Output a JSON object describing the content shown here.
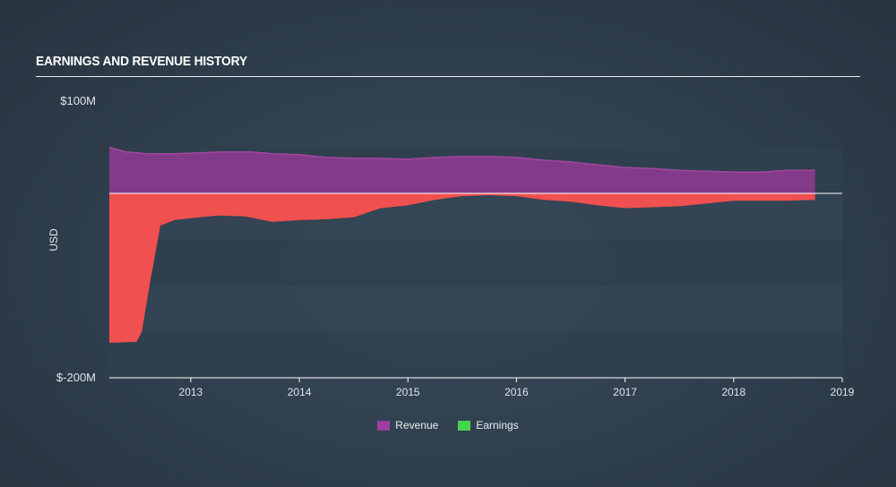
{
  "header": {
    "title": "EARNINGS AND REVENUE HISTORY"
  },
  "colors": {
    "revenue": "#8b3a8e",
    "earnings_negative": "#f0504f",
    "earnings_legend": "#44d64a",
    "revenue_legend": "#9b3fa0"
  },
  "chart_data": {
    "type": "area",
    "title": "EARNINGS AND REVENUE HISTORY",
    "ylabel": "USD",
    "xlabel": "",
    "ylim": [
      -200,
      100
    ],
    "y_tick_labels": [
      "$100M",
      "$-200M"
    ],
    "x_ticks": [
      "2013",
      "2014",
      "2015",
      "2016",
      "2017",
      "2018",
      "2019"
    ],
    "x_range": [
      2012.25,
      2019.0
    ],
    "series": [
      {
        "name": "Revenue",
        "x": [
          2012.25,
          2012.4,
          2012.6,
          2012.85,
          2013.1,
          2013.3,
          2013.55,
          2013.75,
          2014.0,
          2014.25,
          2014.5,
          2014.75,
          2015.0,
          2015.25,
          2015.5,
          2015.75,
          2016.0,
          2016.25,
          2016.5,
          2016.75,
          2017.0,
          2017.25,
          2017.5,
          2017.75,
          2018.0,
          2018.25,
          2018.5,
          2018.75
        ],
        "values": [
          50,
          45,
          43,
          43,
          44,
          45,
          45,
          43,
          42,
          39,
          38,
          38,
          37,
          39,
          40,
          40,
          39,
          36,
          34,
          31,
          28,
          27,
          25,
          24,
          23,
          23,
          25,
          25
        ]
      },
      {
        "name": "Earnings",
        "x": [
          2012.25,
          2012.5,
          2012.55,
          2012.62,
          2012.72,
          2012.85,
          2013.0,
          2013.25,
          2013.5,
          2013.75,
          2014.0,
          2014.25,
          2014.5,
          2014.75,
          2015.0,
          2015.25,
          2015.5,
          2015.75,
          2016.0,
          2016.25,
          2016.5,
          2016.75,
          2017.0,
          2017.25,
          2017.5,
          2017.75,
          2018.0,
          2018.25,
          2018.5,
          2018.75
        ],
        "values": [
          -162,
          -161,
          -150,
          -100,
          -35,
          -29,
          -27,
          -24,
          -25,
          -31,
          -29,
          -28,
          -26,
          -16,
          -13,
          -7,
          -3,
          -2,
          -3,
          -7,
          -9,
          -13,
          -16,
          -15,
          -14,
          -11,
          -8,
          -8,
          -8,
          -7
        ]
      }
    ],
    "legend": [
      {
        "name": "Revenue",
        "color": "#9b3fa0"
      },
      {
        "name": "Earnings",
        "color": "#44d64a"
      }
    ],
    "legend_position": "bottom"
  }
}
